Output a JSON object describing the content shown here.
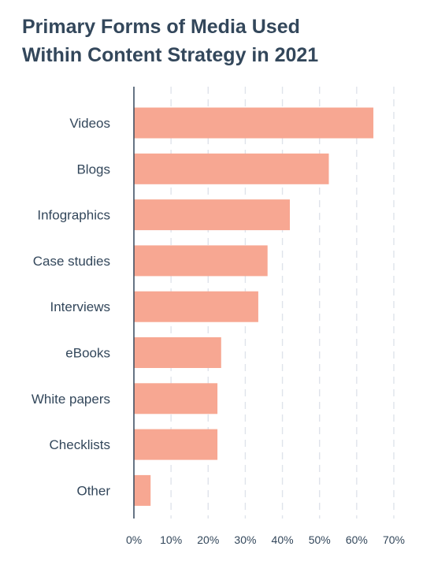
{
  "chart_data": {
    "type": "bar",
    "orientation": "horizontal",
    "title": {
      "line1": "Primary Forms of Media Used",
      "line2": "Within Content Strategy in 2021"
    },
    "categories": [
      "Videos",
      "Blogs",
      "Infographics",
      "Case studies",
      "Interviews",
      "eBooks",
      "White papers",
      "Checklists",
      "Other"
    ],
    "values": [
      64.5,
      52.5,
      42,
      36,
      33.5,
      23.5,
      22.5,
      22.5,
      4.5
    ],
    "unit": "%",
    "xlim": [
      0,
      70
    ],
    "xticks": [
      0,
      10,
      20,
      30,
      40,
      50,
      60,
      70
    ],
    "xtick_labels": [
      "0%",
      "10%",
      "20%",
      "30%",
      "40%",
      "50%",
      "60%",
      "70%"
    ],
    "grid": "vertical dashed",
    "legend": "none",
    "colors": {
      "bar": "#f7a792",
      "axis": "#33475b",
      "grid": "#dfe3eb",
      "text": "#33475b"
    }
  }
}
